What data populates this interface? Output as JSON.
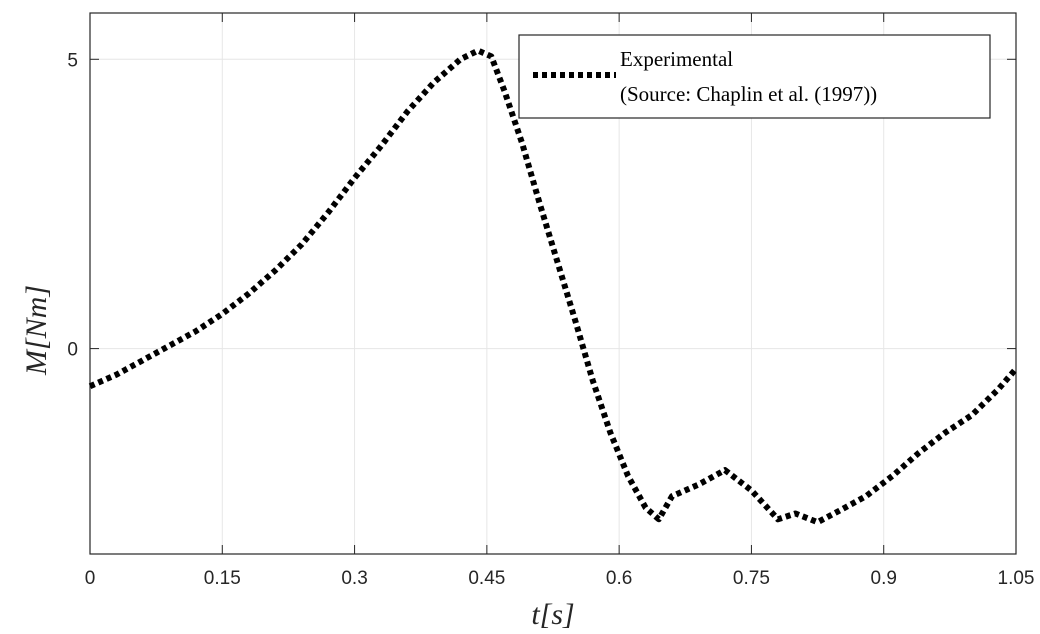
{
  "chart_data": {
    "type": "line",
    "title": "",
    "xlabel": "t[s]",
    "ylabel": "M[Nm]",
    "xlim": [
      0,
      1.05
    ],
    "ylim": [
      -3.55,
      5.8
    ],
    "xticks": [
      0,
      0.15,
      0.3,
      0.45,
      0.6,
      0.75,
      0.9,
      1.05
    ],
    "xtick_labels": [
      "0",
      "0.15",
      "0.3",
      "0.45",
      "0.6",
      "0.75",
      "0.9",
      "1.05"
    ],
    "yticks": [
      0,
      5
    ],
    "ytick_labels": [
      "0",
      "5"
    ],
    "grid": true,
    "legend_position": "top-right",
    "legend_lines": [
      "Experimental",
      "(Source: Chaplin et al. (1997))"
    ],
    "series": [
      {
        "name": "Experimental (Source: Chaplin et al. (1997))",
        "color": "#000000",
        "style": "dotted",
        "x": [
          0,
          0.03,
          0.06,
          0.09,
          0.12,
          0.15,
          0.18,
          0.21,
          0.24,
          0.27,
          0.3,
          0.33,
          0.36,
          0.39,
          0.42,
          0.44,
          0.455,
          0.47,
          0.49,
          0.51,
          0.53,
          0.55,
          0.57,
          0.59,
          0.61,
          0.63,
          0.645,
          0.66,
          0.69,
          0.72,
          0.75,
          0.765,
          0.78,
          0.8,
          0.825,
          0.85,
          0.88,
          0.91,
          0.94,
          0.97,
          1.0,
          1.03,
          1.05
        ],
        "y": [
          -0.65,
          -0.45,
          -0.2,
          0.05,
          0.3,
          0.6,
          0.95,
          1.35,
          1.8,
          2.35,
          2.95,
          3.5,
          4.1,
          4.6,
          5.0,
          5.15,
          5.05,
          4.45,
          3.55,
          2.5,
          1.5,
          0.5,
          -0.55,
          -1.45,
          -2.2,
          -2.75,
          -2.95,
          -2.55,
          -2.35,
          -2.1,
          -2.45,
          -2.7,
          -2.95,
          -2.85,
          -3.0,
          -2.8,
          -2.55,
          -2.2,
          -1.8,
          -1.45,
          -1.15,
          -0.7,
          -0.35
        ]
      }
    ]
  }
}
